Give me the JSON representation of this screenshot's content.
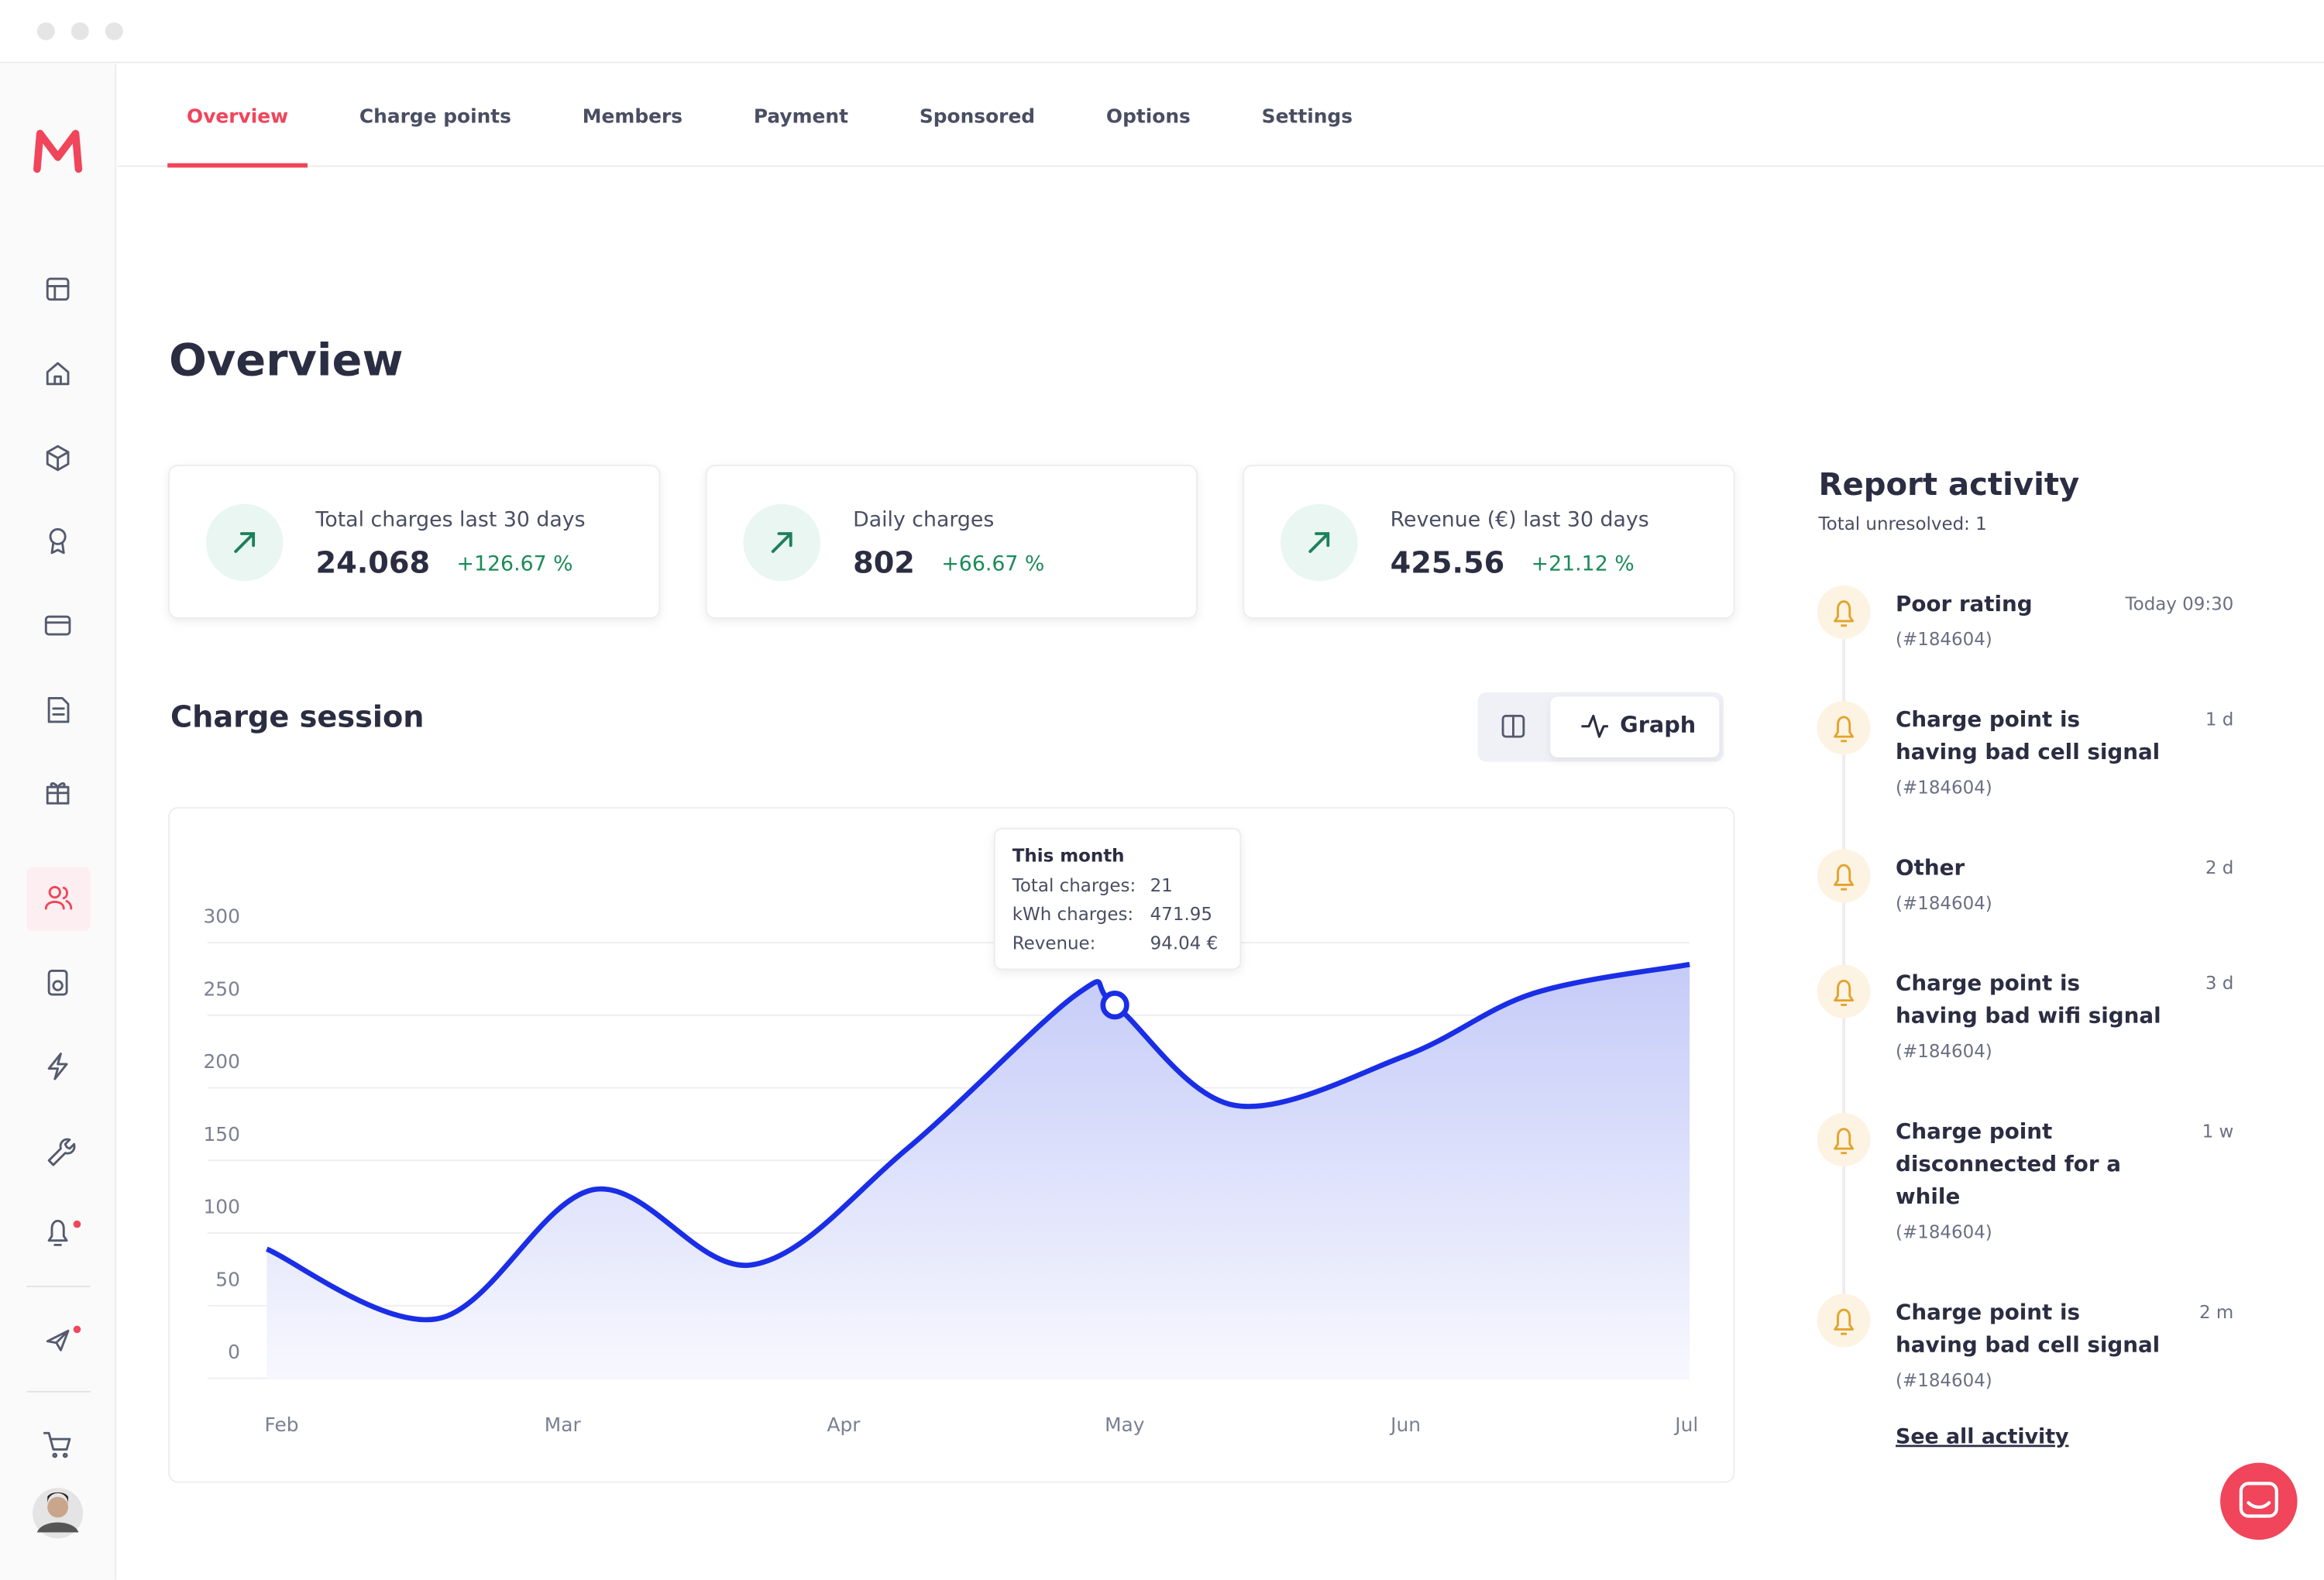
{
  "nav_tabs": [
    "Overview",
    "Charge points",
    "Members",
    "Payment",
    "Sponsored",
    "Options",
    "Settings"
  ],
  "page_title": "Overview",
  "stats": [
    {
      "label": "Total charges last 30 days",
      "value": "24.068",
      "change": "+126.67 %"
    },
    {
      "label": "Daily charges",
      "value": "802",
      "change": "+66.67 %"
    },
    {
      "label": "Revenue (€) last 30 days",
      "value": "425.56",
      "change": "+21.12 %"
    }
  ],
  "section_title": "Charge session",
  "view_toggle": "Graph",
  "chart_data": {
    "type": "line",
    "x": [
      0,
      0.6,
      1.15,
      1.7,
      2.25,
      2.85,
      2.98,
      3.4,
      4.0,
      4.45,
      5
    ],
    "xlim": [
      0,
      5
    ],
    "xticks": [
      {
        "value": 0,
        "label": "Feb"
      },
      {
        "value": 1,
        "label": "Mar"
      },
      {
        "value": 2,
        "label": "Apr"
      },
      {
        "value": 3,
        "label": "May"
      },
      {
        "value": 4,
        "label": "Jun"
      },
      {
        "value": 5,
        "label": "Jul"
      }
    ],
    "ylim": [
      0,
      300
    ],
    "yticks": [
      0,
      50,
      100,
      150,
      200,
      250,
      300
    ],
    "grid": true,
    "series": [
      {
        "color": "#1a2ee6",
        "values": [
          89,
          41,
          130,
          78,
          158,
          265,
          257,
          188,
          222,
          265,
          285
        ]
      }
    ],
    "tooltip": {
      "point": 6,
      "title": "This month",
      "rows": [
        {
          "label": "Total charges:",
          "value": "21"
        },
        {
          "label": "kWh charges:",
          "value": "471.95"
        },
        {
          "label": "Revenue:",
          "value": "94.04 €"
        }
      ]
    }
  },
  "report": {
    "title": "Report activity",
    "subtitle": "Total unresolved: 1",
    "items": [
      {
        "title_lines": [
          "Poor rating"
        ],
        "id": "(#184604)",
        "time": "Today 09:30"
      },
      {
        "title_lines": [
          "Charge point is",
          "having bad cell signal"
        ],
        "id": "(#184604)",
        "time": "1 d"
      },
      {
        "title_lines": [
          "Other"
        ],
        "id": "(#184604)",
        "time": "2 d"
      },
      {
        "title_lines": [
          "Charge point is",
          "having bad wifi signal"
        ],
        "id": "(#184604)",
        "time": "3 d"
      },
      {
        "title_lines": [
          "Charge point",
          "disconnected for a",
          "while"
        ],
        "id": "(#184604)",
        "time": "1 w"
      },
      {
        "title_lines": [
          "Charge point is",
          "having bad cell signal"
        ],
        "id": "(#184604)",
        "time": "2 m"
      }
    ],
    "link": "See all activity"
  }
}
